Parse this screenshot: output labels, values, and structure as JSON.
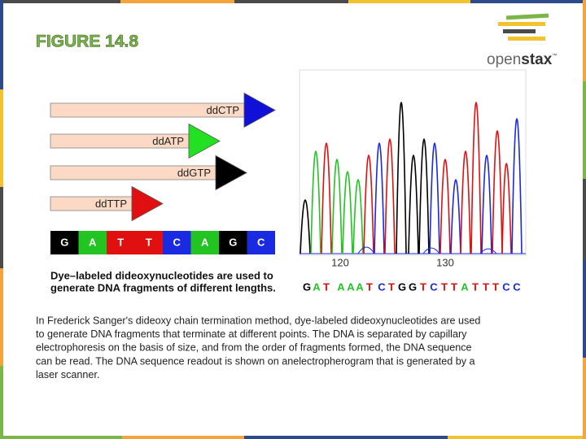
{
  "header": {
    "title": "FIGURE 14.8"
  },
  "logo": {
    "open": "open",
    "stax": "stax",
    "mark": "™"
  },
  "figure": {
    "arrows": [
      {
        "label": "ddCTP",
        "color": "#1010d8"
      },
      {
        "label": "ddATP",
        "color": "#22e022"
      },
      {
        "label": "ddGTP",
        "color": "#000000"
      },
      {
        "label": "ddTTP",
        "color": "#e01010"
      }
    ],
    "sequence": [
      "G",
      "A",
      "T",
      "T",
      "C",
      "A",
      "G",
      "C"
    ],
    "base_colors": {
      "G": "#000000",
      "A": "#22c422",
      "T": "#e01010",
      "C": "#1a2ae0"
    },
    "caption": [
      "Dye–labeled dideoxynucleotides are used to",
      "generate DNA fragments of different lengths."
    ],
    "electropherogram": {
      "xticks": [
        "120",
        "130"
      ],
      "readout": [
        "G",
        "A",
        "T",
        "A",
        "A",
        "A",
        "T",
        "C",
        "T",
        "G",
        "G",
        "T",
        "C",
        "T",
        "T",
        "A",
        "T",
        "T",
        "T",
        "C",
        "C"
      ]
    }
  },
  "body": {
    "lines": [
      "In Frederick Sanger's dideoxy chain termination method, dye-labeled dideoxynucleotides are used",
      "to generate DNA fragments that terminate at different points. The DNA is separated by capillary",
      "electrophoresis on the basis of size, and from the order of fragments formed, the DNA sequence",
      "can be read. The DNA sequence readout is shown on anelectropherogram that is generated by a",
      "laser scanner."
    ]
  }
}
